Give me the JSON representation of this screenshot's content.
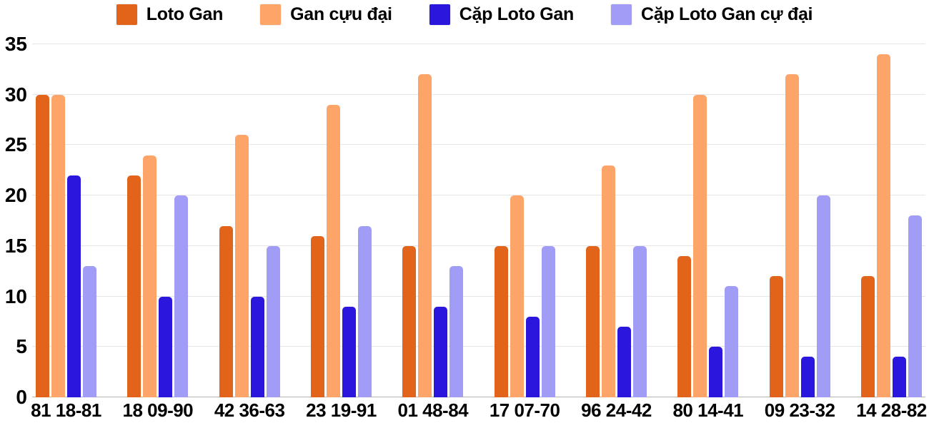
{
  "chart_data": {
    "type": "bar",
    "title": "",
    "xlabel": "",
    "ylabel": "",
    "categories": [
      "81 18-81",
      "18 09-90",
      "42 36-63",
      "23 19-91",
      "01 48-84",
      "17 07-70",
      "96 24-42",
      "80 14-41",
      "09 23-32",
      "14 28-82"
    ],
    "series": [
      {
        "name": "Loto Gan",
        "color": "#e2641a",
        "values": [
          30,
          22,
          17,
          16,
          15,
          15,
          15,
          14,
          12,
          12
        ]
      },
      {
        "name": "Gan cựu đại",
        "color": "#fda568",
        "values": [
          30,
          24,
          26,
          29,
          32,
          20,
          23,
          30,
          32,
          34
        ]
      },
      {
        "name": "Cặp Loto Gan",
        "color": "#2a16dd",
        "values": [
          22,
          10,
          10,
          9,
          9,
          8,
          7,
          5,
          4,
          4
        ]
      },
      {
        "name": "Cặp Loto Gan cự đại",
        "color": "#a19df7",
        "values": [
          13,
          20,
          15,
          17,
          13,
          15,
          15,
          11,
          20,
          18
        ]
      }
    ],
    "ylim": [
      0,
      35
    ],
    "yticks": [
      0,
      5,
      10,
      15,
      20,
      25,
      30,
      35
    ],
    "grid": true,
    "legend_position": "top",
    "gridline_color": "#e6e6e6",
    "baseline_color": "#b5b5b5",
    "text_color": "#000000"
  }
}
